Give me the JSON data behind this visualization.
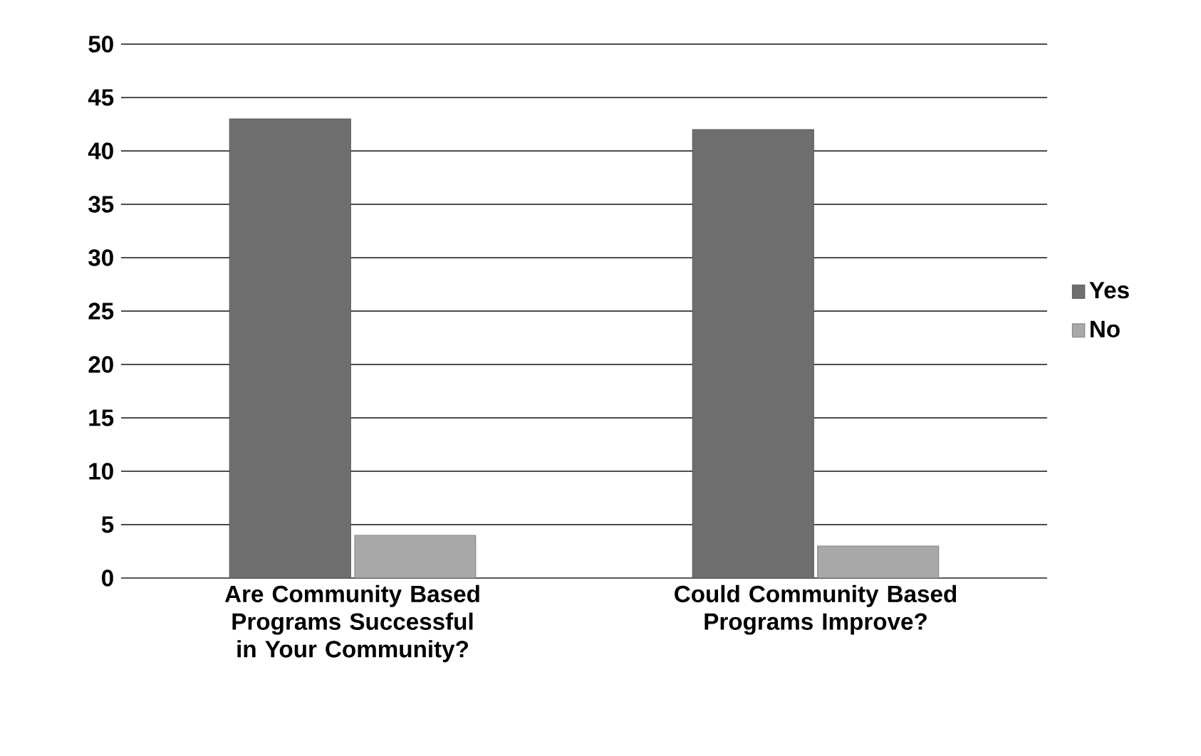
{
  "chart_data": {
    "type": "bar",
    "categories": [
      "Are Community Based Programs Successful in Your Community?",
      "Could Community  Based Programs Improve?"
    ],
    "series": [
      {
        "name": "Yes",
        "color": "#6e6e6e",
        "values": [
          43,
          42
        ]
      },
      {
        "name": "No",
        "color": "#a8a8a8",
        "values": [
          4,
          3
        ]
      }
    ],
    "ylim": [
      0,
      50
    ],
    "yticks": [
      0,
      5,
      10,
      15,
      20,
      25,
      30,
      35,
      40,
      45,
      50
    ],
    "grid": "y",
    "legend": "right"
  }
}
